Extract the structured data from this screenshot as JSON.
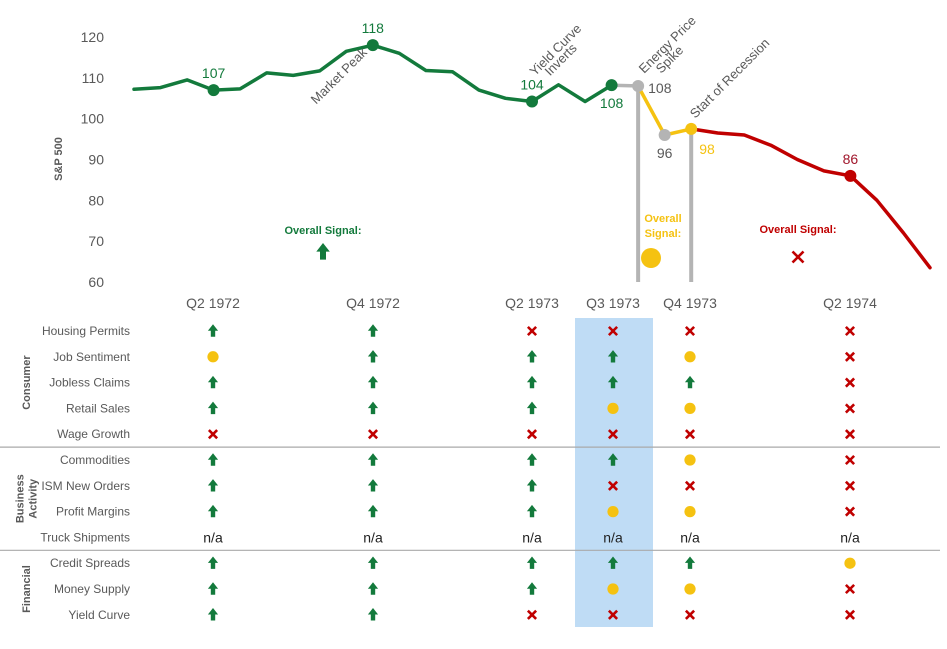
{
  "chart_data": {
    "type": "line",
    "ylabel": "S&P 500",
    "ylim": [
      60,
      120
    ],
    "yticks": [
      60,
      70,
      80,
      90,
      100,
      110,
      120
    ],
    "grid": false,
    "colors": {
      "green": "#137a3c",
      "gray": "#b4b4b4",
      "yellow": "#f5c211",
      "red": "#c00000",
      "highlight": "#bfdcf5",
      "red_label": "#a0152a",
      "text": "#595959"
    },
    "series": [
      {
        "color": "green",
        "points": [
          {
            "t": 0,
            "y": 107.2
          },
          {
            "t": 1,
            "y": 107.6
          },
          {
            "t": 2,
            "y": 109.5
          },
          {
            "t": 3,
            "y": 107
          },
          {
            "t": 4,
            "y": 107.3
          },
          {
            "t": 5,
            "y": 111.2
          },
          {
            "t": 6,
            "y": 110.6
          },
          {
            "t": 7,
            "y": 111.7
          },
          {
            "t": 8,
            "y": 116.5
          },
          {
            "t": 9,
            "y": 118
          },
          {
            "t": 10,
            "y": 116
          },
          {
            "t": 11,
            "y": 111.8
          },
          {
            "t": 12,
            "y": 111.5
          },
          {
            "t": 13,
            "y": 107
          },
          {
            "t": 14,
            "y": 105
          },
          {
            "t": 15,
            "y": 104.2
          },
          {
            "t": 16,
            "y": 108.3
          },
          {
            "t": 17,
            "y": 104.2
          },
          {
            "t": 18,
            "y": 108.2
          }
        ]
      },
      {
        "color": "gray",
        "points": [
          {
            "t": 18,
            "y": 108.2
          },
          {
            "t": 19,
            "y": 108
          }
        ]
      },
      {
        "color": "yellow",
        "points": [
          {
            "t": 19,
            "y": 108
          },
          {
            "t": 20,
            "y": 96
          },
          {
            "t": 21,
            "y": 97.5
          }
        ]
      },
      {
        "color": "red",
        "points": [
          {
            "t": 21,
            "y": 97.5
          },
          {
            "t": 22,
            "y": 96.5
          },
          {
            "t": 23,
            "y": 96
          },
          {
            "t": 24,
            "y": 93.5
          },
          {
            "t": 25,
            "y": 90
          },
          {
            "t": 26,
            "y": 87.2
          },
          {
            "t": 27,
            "y": 86
          },
          {
            "t": 28,
            "y": 80
          },
          {
            "t": 29,
            "y": 72
          },
          {
            "t": 30,
            "y": 63.5
          }
        ]
      }
    ],
    "markers": [
      {
        "t": 3,
        "y": 107,
        "color": "green",
        "label": "107",
        "label_pos": "above"
      },
      {
        "t": 9,
        "y": 118,
        "color": "green",
        "label": "118",
        "label_pos": "above"
      },
      {
        "t": 15,
        "y": 104.2,
        "color": "green",
        "label": "104",
        "label_pos": "above"
      },
      {
        "t": 18,
        "y": 108.2,
        "color": "green",
        "label": "108",
        "label_pos": "below"
      },
      {
        "t": 19,
        "y": 108,
        "color": "gray",
        "label": "108",
        "label_pos": "right"
      },
      {
        "t": 20,
        "y": 96,
        "color": "gray",
        "label": "96",
        "label_pos": "below"
      },
      {
        "t": 21,
        "y": 97.5,
        "color": "yellow",
        "label": "98",
        "label_pos": "below-right"
      },
      {
        "t": 27,
        "y": 86,
        "color": "red",
        "label": "86",
        "label_pos": "above"
      }
    ],
    "event_lines": [
      {
        "t": 19,
        "color": "gray"
      },
      {
        "t": 21,
        "color": "gray"
      }
    ],
    "annotations": [
      {
        "text": "Market Peak",
        "t": 9,
        "y": 118,
        "anchor": "end",
        "dx": -5,
        "dy": 8
      },
      {
        "text": "Yield Curve",
        "t": 15,
        "y": 104.2,
        "anchor": "start",
        "dx": 3,
        "dy": -25
      },
      {
        "text": "Inverts",
        "t": 15,
        "y": 104.2,
        "anchor": "start",
        "dx": 18,
        "dy": -25
      },
      {
        "text": "Energy Price",
        "t": 19,
        "y": 108,
        "anchor": "start",
        "dx": 6,
        "dy": -12
      },
      {
        "text": "Spike",
        "t": 19,
        "y": 108,
        "anchor": "start",
        "dx": 23,
        "dy": -12
      },
      {
        "text": "Start of Recession",
        "t": 21,
        "y": 97.5,
        "anchor": "start",
        "dx": 4,
        "dy": -10
      }
    ],
    "overall_signals": [
      {
        "label": "Overall Signal:",
        "color": "green",
        "signal": "up"
      },
      {
        "label": "Overall Signal:",
        "color": "yellow",
        "signal": "neutral"
      },
      {
        "label": "Overall Signal:",
        "color": "red",
        "signal": "down"
      }
    ],
    "x_labels": [
      "Q2 1972",
      "Q4 1972",
      "Q2 1973",
      "Q3 1973",
      "Q4 1973",
      "Q2 1974"
    ],
    "highlighted_column": 3
  },
  "table": {
    "groups": [
      {
        "name": "Consumer",
        "rows": [
          {
            "label": "Housing Permits",
            "signals": [
              "up",
              "up",
              "down",
              "down",
              "down",
              "down"
            ]
          },
          {
            "label": "Job Sentiment",
            "signals": [
              "neutral",
              "up",
              "up",
              "up",
              "neutral",
              "down"
            ]
          },
          {
            "label": "Jobless Claims",
            "signals": [
              "up",
              "up",
              "up",
              "up",
              "up",
              "down"
            ]
          },
          {
            "label": "Retail Sales",
            "signals": [
              "up",
              "up",
              "up",
              "neutral",
              "neutral",
              "down"
            ]
          },
          {
            "label": "Wage Growth",
            "signals": [
              "down",
              "down",
              "down",
              "down",
              "down",
              "down"
            ]
          }
        ]
      },
      {
        "name": "Business Activity",
        "name_lines": [
          "Business",
          "Activity"
        ],
        "rows": [
          {
            "label": "Commodities",
            "signals": [
              "up",
              "up",
              "up",
              "up",
              "neutral",
              "down"
            ]
          },
          {
            "label": "ISM New Orders",
            "signals": [
              "up",
              "up",
              "up",
              "down",
              "down",
              "down"
            ]
          },
          {
            "label": "Profit Margins",
            "signals": [
              "up",
              "up",
              "up",
              "neutral",
              "neutral",
              "down"
            ]
          },
          {
            "label": "Truck Shipments",
            "signals": [
              "n/a",
              "n/a",
              "n/a",
              "n/a",
              "n/a",
              "n/a"
            ]
          }
        ]
      },
      {
        "name": "Financial",
        "rows": [
          {
            "label": "Credit Spreads",
            "signals": [
              "up",
              "up",
              "up",
              "up",
              "up",
              "neutral"
            ]
          },
          {
            "label": "Money Supply",
            "signals": [
              "up",
              "up",
              "up",
              "neutral",
              "neutral",
              "down"
            ]
          },
          {
            "label": "Yield Curve",
            "signals": [
              "up",
              "up",
              "down",
              "down",
              "down",
              "down"
            ]
          }
        ]
      }
    ],
    "na_text": "n/a"
  }
}
